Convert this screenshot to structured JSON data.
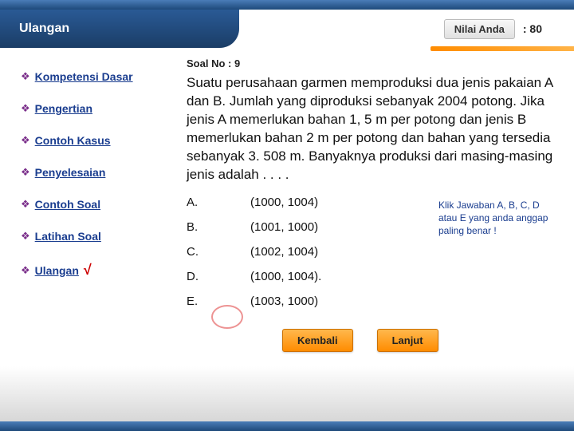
{
  "header": {
    "title": "Ulangan",
    "score_label": "Nilai Anda",
    "score_value": ": 80"
  },
  "sidebar": {
    "items": [
      {
        "label": "Kompetensi Dasar",
        "active": false
      },
      {
        "label": "Pengertian",
        "active": false
      },
      {
        "label": "Contoh Kasus",
        "active": false
      },
      {
        "label": "Penyelesaian",
        "active": false
      },
      {
        "label": "Contoh Soal",
        "active": false
      },
      {
        "label": "Latihan Soal",
        "active": false
      },
      {
        "label": "Ulangan",
        "active": true
      }
    ]
  },
  "content": {
    "soal_no": "Soal No : 9",
    "question": "Suatu perusahaan garmen memproduksi dua jenis pakaian  A dan B. Jumlah yang diproduksi sebanyak 2004 potong. Jika jenis A memerlukan bahan 1, 5 m per potong dan jenis B memerlukan bahan 2 m per potong dan bahan yang tersedia sebanyak 3. 508 m. Banyaknya produksi  dari masing-masing jenis adalah . . . .",
    "options": [
      {
        "letter": "A.",
        "text": "(1000, 1004)"
      },
      {
        "letter": "B.",
        "text": "(1001, 1000)"
      },
      {
        "letter": "C.",
        "text": "(1002, 1004)"
      },
      {
        "letter": "D.",
        "text": "(1000, 1004)."
      },
      {
        "letter": "E.",
        "text": "(1003, 1000)"
      }
    ],
    "hint": "Klik Jawaban A, B, C, D atau E yang anda anggap paling benar !",
    "back_label": "Kembali",
    "next_label": "Lanjut"
  },
  "colors": {
    "header_bg_top": "#2a5a95",
    "header_bg_bottom": "#1a3d66",
    "accent_orange_a": "#ff8c00",
    "accent_orange_b": "#ffb347",
    "link_color": "#1a3d8f",
    "bullet_color": "#7a2e8a",
    "checkmark_color": "#cc0000"
  }
}
